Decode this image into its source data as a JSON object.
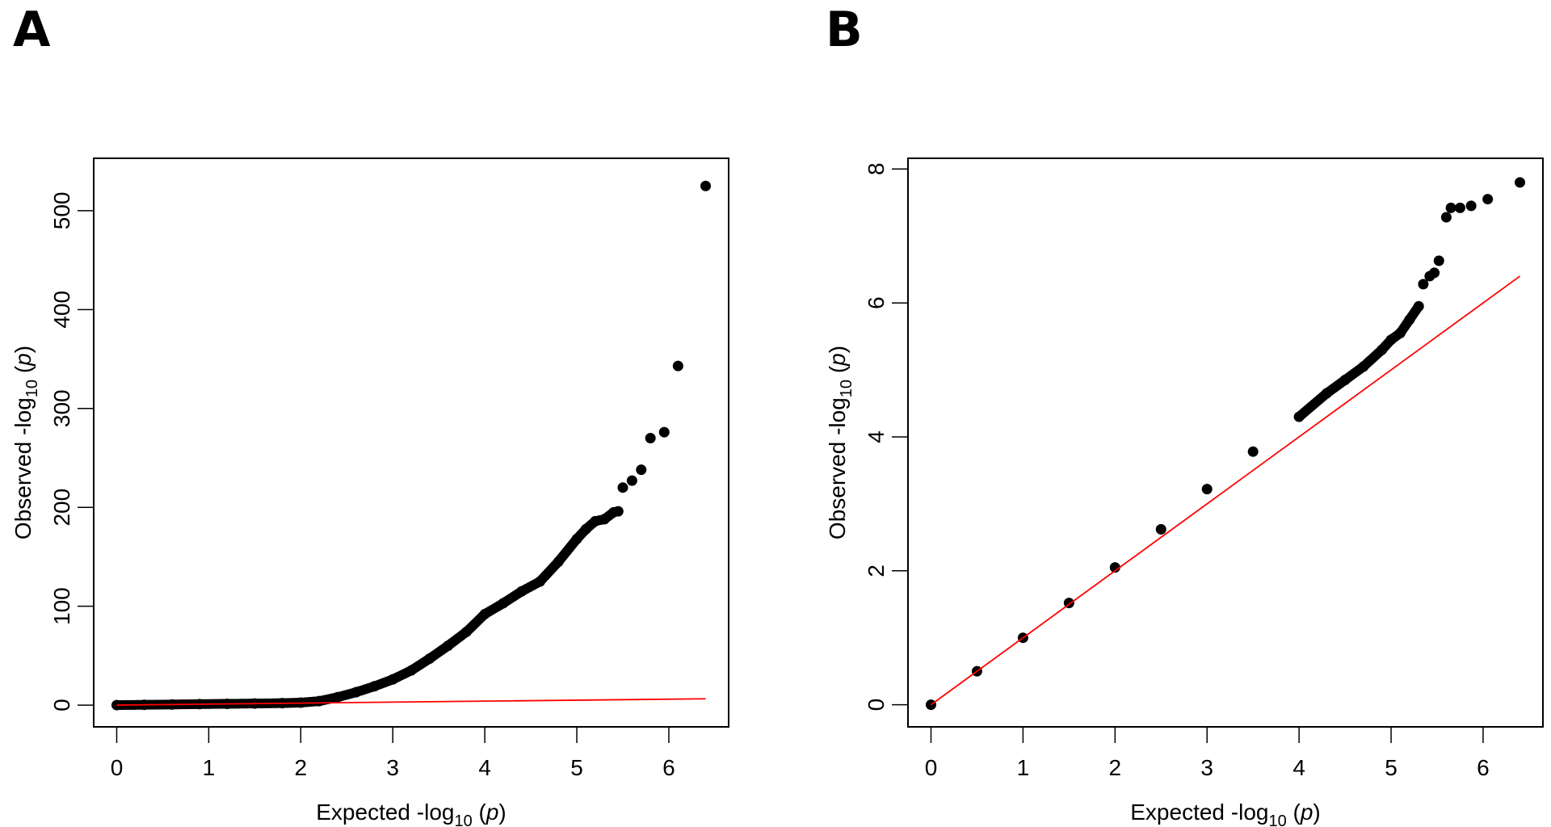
{
  "figure": {
    "panels": [
      "A",
      "B"
    ]
  },
  "chart_data": [
    {
      "panel": "A",
      "type": "scatter",
      "title": "",
      "xlabel": "Expected -log10 (p)",
      "ylabel": "Observed -log10 (p)",
      "xlabel_parts": {
        "pre": "Expected -log",
        "sub": "10",
        "post_open": " (",
        "italic": "p",
        "post_close": ")"
      },
      "ylabel_parts": {
        "pre": "Observed -log",
        "sub": "10",
        "post_open": " (",
        "italic": "p",
        "post_close": ")"
      },
      "xlim": [
        -0.25,
        6.65
      ],
      "ylim": [
        -22,
        553
      ],
      "xticks": [
        0,
        1,
        2,
        3,
        4,
        5,
        6
      ],
      "yticks": [
        0,
        100,
        200,
        300,
        400,
        500
      ],
      "grid": false,
      "point_color": "#000000",
      "reference_line": {
        "label": "y = x",
        "color": "#ff0000",
        "x": [
          0,
          6.4
        ],
        "y": [
          0,
          6.4
        ]
      },
      "series": [
        {
          "name": "observed",
          "x": [
            0,
            0.3,
            0.6,
            0.9,
            1.2,
            1.5,
            1.8,
            2.0,
            2.2,
            2.4,
            2.6,
            2.8,
            3.0,
            3.2,
            3.4,
            3.6,
            3.8,
            4.0,
            4.2,
            4.4,
            4.6,
            4.8,
            5.0,
            5.1,
            5.2,
            5.3,
            5.4,
            5.45,
            5.5,
            5.6,
            5.7,
            5.8,
            5.95,
            6.1,
            6.4
          ],
          "y": [
            0,
            0.3,
            0.6,
            1.0,
            1.3,
            1.6,
            2.0,
            2.5,
            4,
            8,
            13,
            19,
            26,
            35,
            47,
            60,
            74,
            92,
            103,
            115,
            125,
            145,
            168,
            178,
            186,
            188,
            195,
            196,
            220,
            227,
            238,
            270,
            276,
            343,
            525
          ]
        }
      ]
    },
    {
      "panel": "B",
      "type": "scatter",
      "title": "",
      "xlabel": "Expected -log10 (p)",
      "ylabel": "Observed -log10 (p)",
      "xlabel_parts": {
        "pre": "Expected -log",
        "sub": "10",
        "post_open": " (",
        "italic": "p",
        "post_close": ")"
      },
      "ylabel_parts": {
        "pre": "Observed -log",
        "sub": "10",
        "post_open": " (",
        "italic": "p",
        "post_close": ")"
      },
      "xlim": [
        -0.25,
        6.65
      ],
      "ylim": [
        -0.33,
        8.16
      ],
      "xticks": [
        0,
        1,
        2,
        3,
        4,
        5,
        6
      ],
      "yticks": [
        0,
        2,
        4,
        6,
        8
      ],
      "grid": false,
      "point_color": "#000000",
      "reference_line": {
        "label": "y = x",
        "color": "#ff0000",
        "x": [
          0,
          6.4
        ],
        "y": [
          0,
          6.4
        ]
      },
      "series": [
        {
          "name": "observed",
          "x": [
            0,
            0.5,
            1.0,
            1.5,
            2.0,
            2.5,
            3.0,
            3.5,
            4.0,
            4.3,
            4.5,
            4.7,
            4.9,
            5.0,
            5.1,
            5.2,
            5.3,
            5.35,
            5.42,
            5.47,
            5.52,
            5.6,
            5.65,
            5.75,
            5.87,
            6.05,
            6.4
          ],
          "y": [
            0,
            0.5,
            1.0,
            1.52,
            2.05,
            2.62,
            3.22,
            3.78,
            4.3,
            4.65,
            4.85,
            5.05,
            5.3,
            5.45,
            5.55,
            5.75,
            5.95,
            6.28,
            6.4,
            6.45,
            6.63,
            7.28,
            7.42,
            7.42,
            7.45,
            7.55,
            7.8
          ]
        }
      ]
    }
  ]
}
